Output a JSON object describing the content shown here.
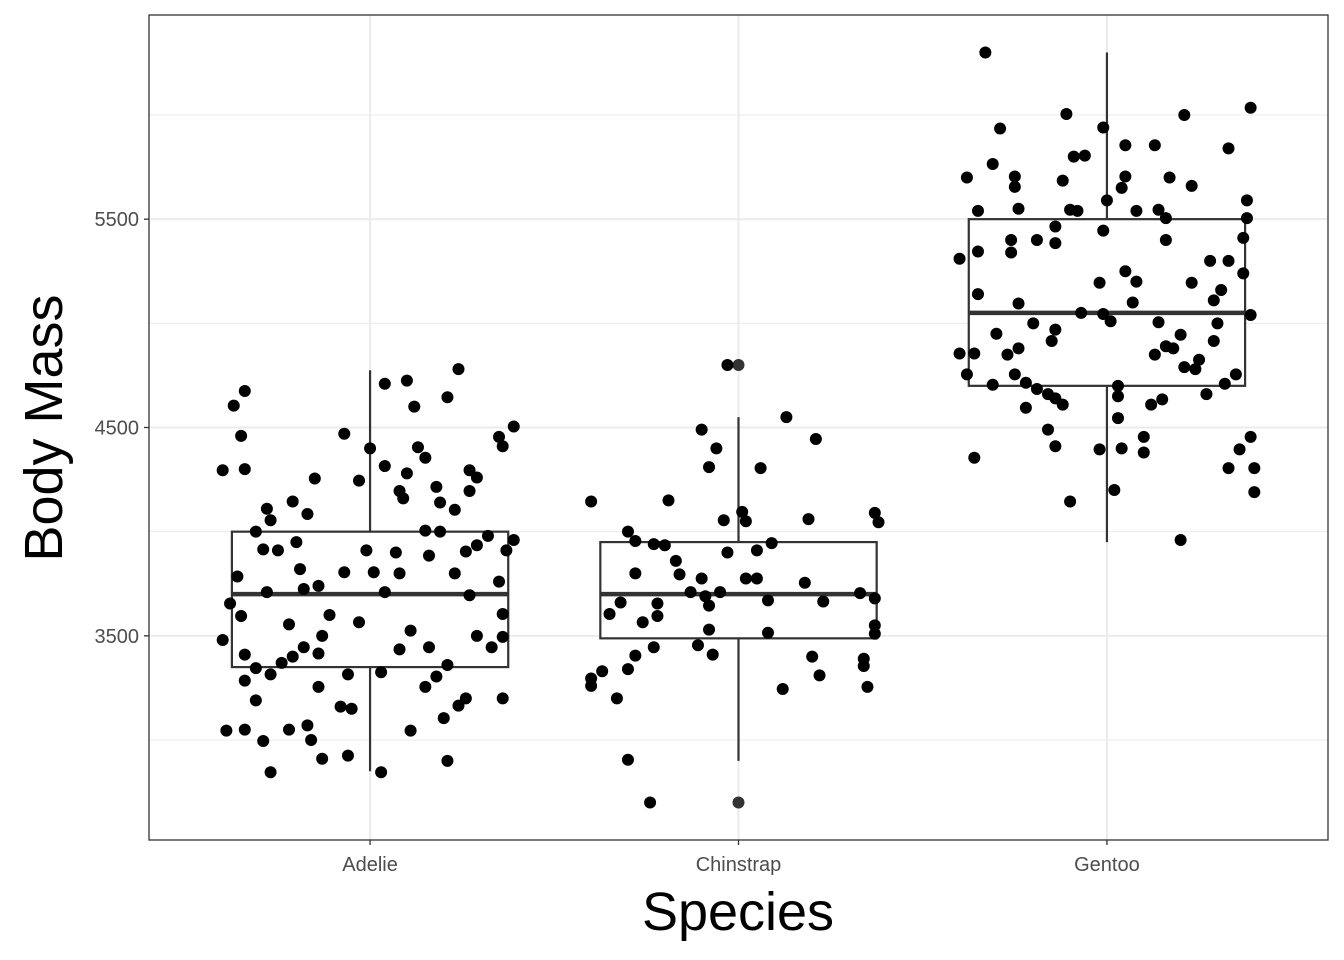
{
  "chart_data": {
    "type": "boxplot",
    "title": "",
    "xlabel": "Species",
    "ylabel": "Body Mass",
    "categories": [
      "Adelie",
      "Chinstrap",
      "Gentoo"
    ],
    "ylim": [
      2520,
      6480
    ],
    "yticks": [
      3500,
      4500,
      5500
    ],
    "yminor": [
      3000,
      4000,
      5000,
      6000
    ],
    "grid": true,
    "legend": "none",
    "colors": {
      "points": "#000000",
      "box": "#333333",
      "grid": "#ebebeb",
      "panel_border": "#333333"
    },
    "boxes": [
      {
        "category": "Adelie",
        "lower_whisker": 2850,
        "q1": 3350,
        "median": 3700,
        "q3": 4000,
        "upper_whisker": 4775,
        "outliers": []
      },
      {
        "category": "Chinstrap",
        "lower_whisker": 2900,
        "q1": 3488,
        "median": 3700,
        "q3": 3950,
        "upper_whisker": 4550,
        "outliers": [
          4800,
          2700
        ]
      },
      {
        "category": "Gentoo",
        "lower_whisker": 3950,
        "q1": 4700,
        "median": 5050,
        "q3": 5500,
        "upper_whisker": 6300,
        "outliers": []
      }
    ],
    "points_note": "jittered points as [x-jitter in category units, body mass]",
    "points": {
      "Adelie": [
        [
          -0.34,
          4675
        ],
        [
          -0.37,
          4605
        ],
        [
          -0.35,
          4460
        ],
        [
          -0.4,
          4295
        ],
        [
          -0.34,
          4300
        ],
        [
          -0.28,
          4110
        ],
        [
          -0.27,
          4055
        ],
        [
          -0.17,
          4085
        ],
        [
          -0.21,
          4145
        ],
        [
          -0.15,
          4255
        ],
        [
          -0.07,
          4470
        ],
        [
          0.04,
          4710
        ],
        [
          0.1,
          4725
        ],
        [
          0.12,
          4600
        ],
        [
          0.24,
          4780
        ],
        [
          0.21,
          4645
        ],
        [
          0,
          4400
        ],
        [
          0.04,
          4315
        ],
        [
          0.1,
          4280
        ],
        [
          0.13,
          4405
        ],
        [
          0.15,
          4355
        ],
        [
          -0.03,
          4245
        ],
        [
          0.08,
          4195
        ],
        [
          0.09,
          4160
        ],
        [
          0.18,
          4215
        ],
        [
          0.23,
          4105
        ],
        [
          0.19,
          4140
        ],
        [
          0.27,
          4295
        ],
        [
          0.29,
          4260
        ],
        [
          0.27,
          4195
        ],
        [
          0.35,
          4455
        ],
        [
          0.36,
          4410
        ],
        [
          0.39,
          4505
        ],
        [
          -0.31,
          4000
        ],
        [
          -0.2,
          3950
        ],
        [
          -0.29,
          3915
        ],
        [
          -0.25,
          3910
        ],
        [
          -0.36,
          3785
        ],
        [
          -0.28,
          3710
        ],
        [
          -0.19,
          3820
        ],
        [
          -0.18,
          3725
        ],
        [
          -0.14,
          3740
        ],
        [
          -0.07,
          3805
        ],
        [
          -0.01,
          3910
        ],
        [
          0.07,
          3900
        ],
        [
          0.01,
          3805
        ],
        [
          0.04,
          3710
        ],
        [
          0.08,
          3800
        ],
        [
          0.16,
          3885
        ],
        [
          0.15,
          4005
        ],
        [
          0.19,
          4000
        ],
        [
          0.26,
          3905
        ],
        [
          0.29,
          3935
        ],
        [
          0.32,
          3980
        ],
        [
          0.37,
          3910
        ],
        [
          0.39,
          3960
        ],
        [
          0.35,
          3760
        ],
        [
          0.27,
          3695
        ],
        [
          0.23,
          3800
        ],
        [
          0.36,
          3605
        ],
        [
          0.36,
          3495
        ],
        [
          -0.38,
          3655
        ],
        [
          -0.4,
          3480
        ],
        [
          -0.35,
          3595
        ],
        [
          -0.34,
          3410
        ],
        [
          -0.31,
          3345
        ],
        [
          -0.34,
          3285
        ],
        [
          -0.31,
          3190
        ],
        [
          -0.27,
          3315
        ],
        [
          -0.24,
          3370
        ],
        [
          -0.21,
          3400
        ],
        [
          -0.22,
          3555
        ],
        [
          -0.18,
          3445
        ],
        [
          -0.14,
          3415
        ],
        [
          -0.13,
          3500
        ],
        [
          -0.03,
          3565
        ],
        [
          -0.11,
          3600
        ],
        [
          -0.14,
          3255
        ],
        [
          -0.06,
          3315
        ],
        [
          0.03,
          3325
        ],
        [
          0.08,
          3435
        ],
        [
          0.11,
          3525
        ],
        [
          0.16,
          3445
        ],
        [
          0.21,
          3360
        ],
        [
          0.18,
          3305
        ],
        [
          0.15,
          3255
        ],
        [
          0.24,
          3165
        ],
        [
          0.2,
          3105
        ],
        [
          0.26,
          3200
        ],
        [
          0.29,
          3500
        ],
        [
          0.33,
          3445
        ],
        [
          0.36,
          3200
        ],
        [
          -0.39,
          3045
        ],
        [
          -0.34,
          3050
        ],
        [
          -0.29,
          2995
        ],
        [
          -0.27,
          2845
        ],
        [
          -0.22,
          3050
        ],
        [
          -0.17,
          3070
        ],
        [
          -0.16,
          3000
        ],
        [
          -0.13,
          2910
        ],
        [
          -0.06,
          2925
        ],
        [
          -0.08,
          3160
        ],
        [
          -0.05,
          3150
        ],
        [
          0.03,
          2845
        ],
        [
          0.11,
          3045
        ],
        [
          0.21,
          2900
        ]
      ],
      "Chinstrap": [
        [
          -0.4,
          4145
        ],
        [
          -0.19,
          4150
        ],
        [
          -0.3,
          4000
        ],
        [
          -0.28,
          3955
        ],
        [
          -0.23,
          3940
        ],
        [
          -0.2,
          3935
        ],
        [
          -0.1,
          4490
        ],
        [
          -0.08,
          4310
        ],
        [
          -0.06,
          4400
        ],
        [
          -0.03,
          4800
        ],
        [
          0.01,
          4095
        ],
        [
          0.02,
          4050
        ],
        [
          -0.04,
          4055
        ],
        [
          0.06,
          4305
        ],
        [
          0.13,
          4550
        ],
        [
          0.21,
          4445
        ],
        [
          0.19,
          4060
        ],
        [
          0.37,
          4090
        ],
        [
          0.38,
          4045
        ],
        [
          0.09,
          3945
        ],
        [
          0.05,
          3910
        ],
        [
          -0.03,
          3900
        ],
        [
          -0.17,
          3860
        ],
        [
          -0.28,
          3800
        ],
        [
          -0.16,
          3795
        ],
        [
          -0.1,
          3775
        ],
        [
          0.02,
          3775
        ],
        [
          0.05,
          3775
        ],
        [
          0.18,
          3755
        ],
        [
          -0.13,
          3710
        ],
        [
          -0.09,
          3690
        ],
        [
          -0.05,
          3710
        ],
        [
          -0.08,
          3645
        ],
        [
          -0.32,
          3660
        ],
        [
          -0.22,
          3655
        ],
        [
          -0.35,
          3605
        ],
        [
          -0.22,
          3595
        ],
        [
          -0.26,
          3565
        ],
        [
          0.08,
          3670
        ],
        [
          0.23,
          3665
        ],
        [
          0.33,
          3705
        ],
        [
          0.37,
          3680
        ],
        [
          0.37,
          3550
        ],
        [
          0.37,
          3510
        ],
        [
          -0.08,
          3530
        ],
        [
          0.08,
          3515
        ],
        [
          -0.23,
          3445
        ],
        [
          -0.11,
          3455
        ],
        [
          -0.07,
          3410
        ],
        [
          -0.28,
          3405
        ],
        [
          -0.3,
          3340
        ],
        [
          -0.37,
          3330
        ],
        [
          -0.4,
          3295
        ],
        [
          -0.4,
          3260
        ],
        [
          -0.33,
          3200
        ],
        [
          0.2,
          3400
        ],
        [
          0.22,
          3310
        ],
        [
          0.34,
          3390
        ],
        [
          0.34,
          3355
        ],
        [
          0.35,
          3255
        ],
        [
          0.12,
          3245
        ],
        [
          -0.3,
          2905
        ],
        [
          -0.24,
          2700
        ]
      ],
      "Gentoo": [
        [
          -0.33,
          6300
        ],
        [
          -0.11,
          6005
        ],
        [
          -0.01,
          5940
        ],
        [
          0.21,
          6000
        ],
        [
          0.39,
          6035
        ],
        [
          -0.29,
          5935
        ],
        [
          -0.06,
          5805
        ],
        [
          -0.09,
          5800
        ],
        [
          0.05,
          5855
        ],
        [
          0.13,
          5855
        ],
        [
          0.33,
          5840
        ],
        [
          -0.31,
          5765
        ],
        [
          -0.38,
          5700
        ],
        [
          -0.25,
          5705
        ],
        [
          -0.25,
          5655
        ],
        [
          -0.12,
          5685
        ],
        [
          0.05,
          5705
        ],
        [
          0.04,
          5650
        ],
        [
          0.17,
          5700
        ],
        [
          0.23,
          5660
        ],
        [
          -0.35,
          5540
        ],
        [
          -0.24,
          5550
        ],
        [
          -0.1,
          5545
        ],
        [
          -0.08,
          5540
        ],
        [
          0,
          5590
        ],
        [
          0.08,
          5540
        ],
        [
          0.14,
          5545
        ],
        [
          0.16,
          5505
        ],
        [
          0.38,
          5590
        ],
        [
          0.38,
          5505
        ],
        [
          -0.14,
          5465
        ],
        [
          -0.01,
          5445
        ],
        [
          -0.26,
          5400
        ],
        [
          -0.19,
          5400
        ],
        [
          -0.14,
          5385
        ],
        [
          0.16,
          5400
        ],
        [
          0.37,
          5410
        ],
        [
          -0.35,
          5345
        ],
        [
          -0.4,
          5310
        ],
        [
          -0.26,
          5340
        ],
        [
          0.28,
          5300
        ],
        [
          0.33,
          5300
        ],
        [
          0.37,
          5240
        ],
        [
          0.05,
          5250
        ],
        [
          -0.02,
          5195
        ],
        [
          0.08,
          5200
        ],
        [
          0.23,
          5195
        ],
        [
          0.31,
          5160
        ],
        [
          -0.35,
          5140
        ],
        [
          -0.24,
          5095
        ],
        [
          0.07,
          5100
        ],
        [
          0.29,
          5110
        ],
        [
          -0.07,
          5050
        ],
        [
          -0.01,
          5045
        ],
        [
          0.01,
          5010
        ],
        [
          0.39,
          5040
        ],
        [
          -0.2,
          5000
        ],
        [
          -0.14,
          4970
        ],
        [
          -0.3,
          4950
        ],
        [
          -0.15,
          4915
        ],
        [
          0.14,
          5005
        ],
        [
          0.3,
          5000
        ],
        [
          0.2,
          4945
        ],
        [
          0.29,
          4915
        ],
        [
          0.16,
          4890
        ],
        [
          0.18,
          4880
        ],
        [
          -0.24,
          4880
        ],
        [
          -0.27,
          4850
        ],
        [
          -0.4,
          4855
        ],
        [
          -0.36,
          4855
        ],
        [
          0.13,
          4850
        ],
        [
          0.25,
          4825
        ],
        [
          0.21,
          4790
        ],
        [
          0.24,
          4780
        ],
        [
          0.35,
          4755
        ],
        [
          -0.38,
          4755
        ],
        [
          -0.25,
          4755
        ],
        [
          -0.22,
          4715
        ],
        [
          -0.31,
          4705
        ],
        [
          -0.19,
          4685
        ],
        [
          -0.16,
          4660
        ],
        [
          -0.14,
          4640
        ],
        [
          -0.12,
          4610
        ],
        [
          -0.22,
          4595
        ],
        [
          0.03,
          4700
        ],
        [
          0.03,
          4650
        ],
        [
          0.15,
          4635
        ],
        [
          0.12,
          4610
        ],
        [
          0.27,
          4660
        ],
        [
          0.32,
          4710
        ],
        [
          0.03,
          4545
        ],
        [
          -0.16,
          4490
        ],
        [
          -0.14,
          4410
        ],
        [
          -0.36,
          4355
        ],
        [
          -0.02,
          4395
        ],
        [
          0.04,
          4400
        ],
        [
          0.1,
          4455
        ],
        [
          0.1,
          4380
        ],
        [
          0.39,
          4455
        ],
        [
          0.36,
          4395
        ],
        [
          0.33,
          4305
        ],
        [
          0.4,
          4305
        ],
        [
          0.4,
          4190
        ],
        [
          -0.1,
          4145
        ],
        [
          0.02,
          4200
        ],
        [
          0.2,
          3960
        ]
      ]
    }
  }
}
